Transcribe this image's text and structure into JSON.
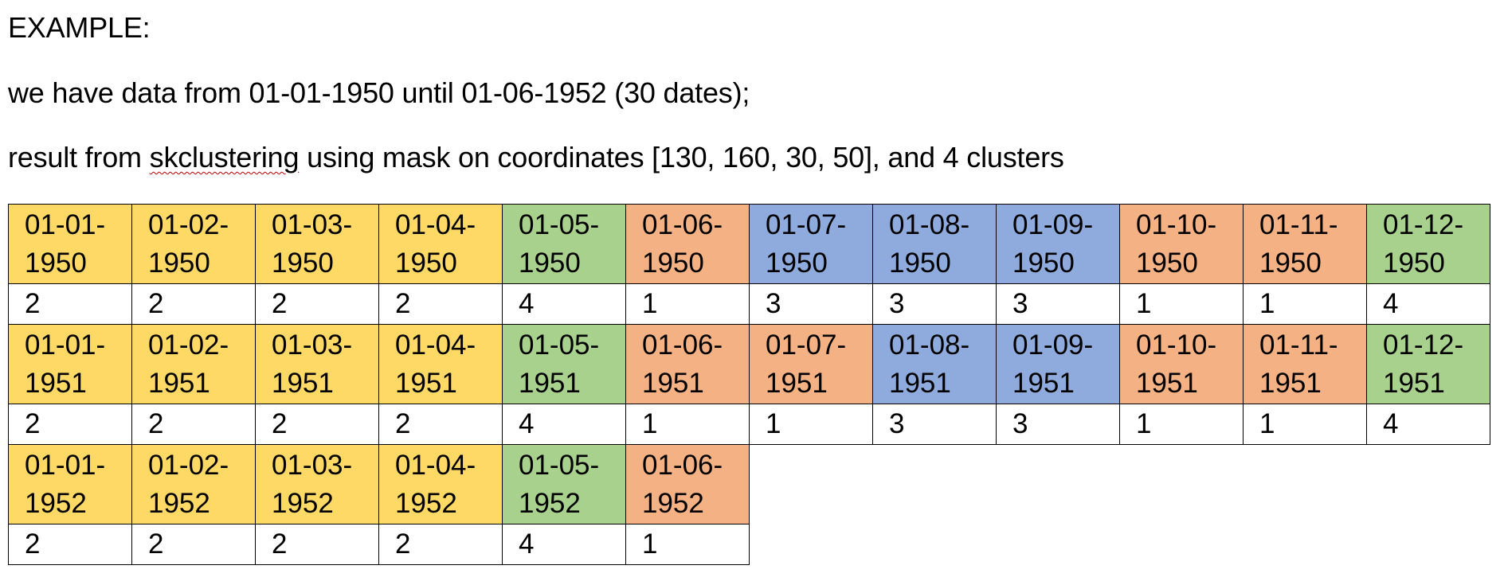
{
  "paragraphs": {
    "example": "EXAMPLE:",
    "range": "we have data from 01-01-1950 until 01-06-1952 (30 dates);",
    "result_before": "result from ",
    "result_flagged": "skclustering",
    "result_after": " using mask on coordinates [130, 160, 30, 50], and 4 clusters"
  },
  "cluster_colors": {
    "1": "#f4b183",
    "2": "#ffd966",
    "3": "#8faadc",
    "4": "#a9d18e"
  },
  "table": {
    "rows": [
      {
        "dates": [
          {
            "day": "01-01-",
            "year": "1950",
            "cluster": "2"
          },
          {
            "day": "01-02-",
            "year": "1950",
            "cluster": "2"
          },
          {
            "day": "01-03-",
            "year": "1950",
            "cluster": "2"
          },
          {
            "day": "01-04-",
            "year": "1950",
            "cluster": "2"
          },
          {
            "day": "01-05-",
            "year": "1950",
            "cluster": "4"
          },
          {
            "day": "01-06-",
            "year": "1950",
            "cluster": "1"
          },
          {
            "day": "01-07-",
            "year": "1950",
            "cluster": "3"
          },
          {
            "day": "01-08-",
            "year": "1950",
            "cluster": "3"
          },
          {
            "day": "01-09-",
            "year": "1950",
            "cluster": "3"
          },
          {
            "day": "01-10-",
            "year": "1950",
            "cluster": "1"
          },
          {
            "day": "01-11-",
            "year": "1950",
            "cluster": "1"
          },
          {
            "day": "01-12-",
            "year": "1950",
            "cluster": "4"
          }
        ]
      },
      {
        "dates": [
          {
            "day": "01-01-",
            "year": "1951",
            "cluster": "2"
          },
          {
            "day": "01-02-",
            "year": "1951",
            "cluster": "2"
          },
          {
            "day": "01-03-",
            "year": "1951",
            "cluster": "2"
          },
          {
            "day": "01-04-",
            "year": "1951",
            "cluster": "2"
          },
          {
            "day": "01-05-",
            "year": "1951",
            "cluster": "4"
          },
          {
            "day": "01-06-",
            "year": "1951",
            "cluster": "1"
          },
          {
            "day": "01-07-",
            "year": "1951",
            "cluster": "1"
          },
          {
            "day": "01-08-",
            "year": "1951",
            "cluster": "3"
          },
          {
            "day": "01-09-",
            "year": "1951",
            "cluster": "3"
          },
          {
            "day": "01-10-",
            "year": "1951",
            "cluster": "1"
          },
          {
            "day": "01-11-",
            "year": "1951",
            "cluster": "1"
          },
          {
            "day": "01-12-",
            "year": "1951",
            "cluster": "4"
          }
        ]
      },
      {
        "dates": [
          {
            "day": "01-01-",
            "year": "1952",
            "cluster": "2"
          },
          {
            "day": "01-02-",
            "year": "1952",
            "cluster": "2"
          },
          {
            "day": "01-03-",
            "year": "1952",
            "cluster": "2"
          },
          {
            "day": "01-04-",
            "year": "1952",
            "cluster": "2"
          },
          {
            "day": "01-05-",
            "year": "1952",
            "cluster": "4"
          },
          {
            "day": "01-06-",
            "year": "1952",
            "cluster": "1"
          }
        ]
      }
    ]
  }
}
